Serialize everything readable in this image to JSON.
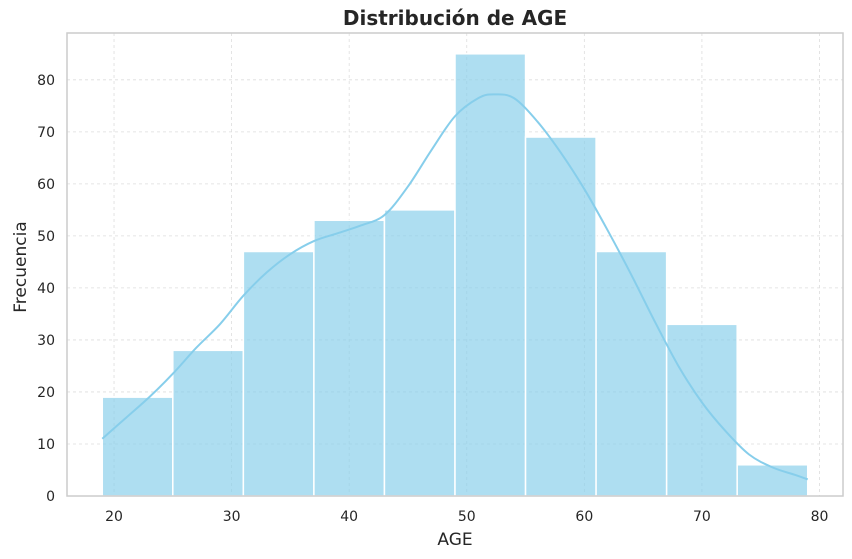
{
  "colors": {
    "bar_fill": "#87ceeb",
    "bar_edge": "#ffffff",
    "kde_line": "#87ceeb",
    "grid": "#dddddd",
    "frame": "#cccccc",
    "text": "#262626"
  },
  "chart_data": {
    "type": "bar",
    "title": "Distribución de AGE",
    "xlabel": "AGE",
    "ylabel": "Frecuencia",
    "xlim": [
      16,
      82
    ],
    "ylim": [
      0,
      89
    ],
    "grid": true,
    "grid_style": "dashed",
    "xticks": [
      20,
      30,
      40,
      50,
      60,
      70,
      80
    ],
    "yticks": [
      0,
      10,
      20,
      30,
      40,
      50,
      60,
      70,
      80
    ],
    "bin_edges": [
      19,
      25,
      31,
      37,
      43,
      49,
      55,
      61,
      67,
      73,
      79
    ],
    "values": [
      19,
      28,
      47,
      53,
      55,
      85,
      69,
      47,
      33,
      6
    ],
    "kde": {
      "x": [
        19,
        21,
        23,
        25,
        27,
        29,
        31,
        33,
        35,
        37,
        39,
        41,
        43,
        45,
        47,
        49,
        51,
        52.3,
        54,
        56,
        58,
        60,
        62,
        64,
        66,
        68,
        70,
        72,
        74,
        76,
        78,
        79
      ],
      "y": [
        11,
        15,
        19,
        23.5,
        28.5,
        33,
        38.5,
        43,
        46.5,
        49,
        50.5,
        52,
        54,
        59.5,
        66.5,
        73,
        76.5,
        77.2,
        76.5,
        72,
        66,
        59,
        51,
        42.5,
        33.5,
        25,
        18,
        12.5,
        8,
        5.5,
        4,
        3.2
      ]
    }
  }
}
